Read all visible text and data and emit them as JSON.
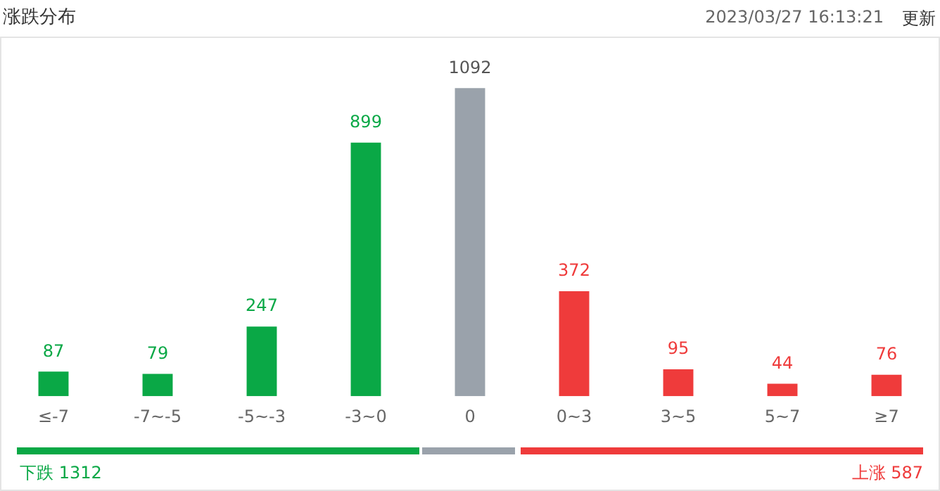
{
  "chart_data": {
    "type": "bar",
    "title": "涨跌分布",
    "categories": [
      "≤-7",
      "-7~-5",
      "-5~-3",
      "-3~0",
      "0",
      "0~3",
      "3~5",
      "5~7",
      "≥7"
    ],
    "values": [
      87,
      79,
      247,
      899,
      1092,
      372,
      95,
      44,
      76
    ],
    "colors": [
      "#0aa846",
      "#0aa846",
      "#0aa846",
      "#0aa846",
      "#9aa2ab",
      "#ef3b3b",
      "#ef3b3b",
      "#ef3b3b",
      "#ef3b3b"
    ],
    "data_labels": true,
    "grid": false,
    "legend": false,
    "tick_labels": "x",
    "annotations": [
      "2023/03/27 16:13:21",
      "更新",
      "下跌 1312",
      "上涨 587"
    ]
  }
}
